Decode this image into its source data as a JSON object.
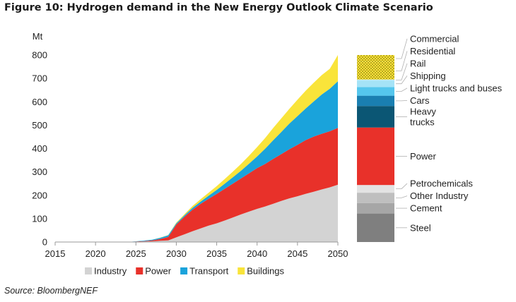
{
  "title": "Figure 10: Hydrogen demand in the New Energy Outlook Climate Scenario",
  "source": "Source: BloombergNEF",
  "chart_data": [
    {
      "type": "area",
      "stacked": true,
      "ylabel": "Mt",
      "ylim": [
        0,
        800
      ],
      "yticks": [
        0,
        100,
        200,
        300,
        400,
        500,
        600,
        700,
        800
      ],
      "xlim": [
        2015,
        2050
      ],
      "xticks": [
        2015,
        2020,
        2025,
        2030,
        2035,
        2040,
        2045,
        2050
      ],
      "grid": false,
      "legend_position": "bottom",
      "x": [
        2015,
        2020,
        2024,
        2025,
        2026,
        2027,
        2028,
        2029,
        2030,
        2031,
        2032,
        2033,
        2034,
        2035,
        2036,
        2037,
        2038,
        2039,
        2040,
        2041,
        2042,
        2043,
        2044,
        2045,
        2046,
        2047,
        2048,
        2049,
        2050
      ],
      "series": [
        {
          "name": "Industry",
          "color": "#d3d3d3",
          "values": [
            0,
            0,
            0,
            1,
            2,
            3,
            5,
            7,
            20,
            33,
            46,
            58,
            70,
            80,
            92,
            105,
            118,
            130,
            142,
            152,
            164,
            176,
            187,
            196,
            206,
            215,
            225,
            234,
            245
          ]
        },
        {
          "name": "Power",
          "color": "#e8312a",
          "values": [
            0,
            0,
            0,
            1,
            2,
            4,
            8,
            15,
            55,
            75,
            92,
            105,
            115,
            126,
            136,
            145,
            154,
            164,
            174,
            182,
            192,
            200,
            210,
            220,
            230,
            236,
            238,
            240,
            243
          ]
        },
        {
          "name": "Transport",
          "color": "#1aa3db",
          "values": [
            0,
            0,
            0,
            1,
            2,
            3,
            5,
            7,
            5,
            6,
            8,
            10,
            13,
            17,
            22,
            27,
            33,
            41,
            50,
            65,
            80,
            95,
            110,
            123,
            135,
            150,
            168,
            182,
            200
          ]
        },
        {
          "name": "Buildings",
          "color": "#f9e43a",
          "values": [
            0,
            0,
            0,
            0,
            0,
            0,
            1,
            1,
            3,
            5,
            8,
            10,
            13,
            16,
            20,
            24,
            29,
            34,
            40,
            46,
            52,
            58,
            63,
            70,
            76,
            80,
            83,
            85,
            112
          ]
        }
      ]
    },
    {
      "type": "bar",
      "stacked": true,
      "ylim": [
        0,
        800
      ],
      "segments": [
        {
          "label": "Steel",
          "value": 122,
          "color": "#7f7f7f"
        },
        {
          "label": "Cement",
          "value": 45,
          "color": "#a6a6a6"
        },
        {
          "label": "Other Industry",
          "value": 44,
          "color": "#bfbfbf"
        },
        {
          "label": "Petrochemicals",
          "value": 33,
          "color": "#e3e3e3"
        },
        {
          "label": "Power",
          "value": 246,
          "color": "#e8312a"
        },
        {
          "label": "Heavy\ntrucks",
          "value": 92,
          "color": "#0b5674"
        },
        {
          "label": "Cars",
          "value": 44,
          "color": "#1a7fb1"
        },
        {
          "label": "Light trucks and buses",
          "value": 37,
          "color": "#55c6ed"
        },
        {
          "label": "Shipping",
          "value": 28,
          "color": "#a5e3f7"
        },
        {
          "label": "Rail",
          "value": 4,
          "color": "#bdeaf9"
        },
        {
          "label": "Residential",
          "value": 75,
          "color": "#f9e43a",
          "pattern": "dotted"
        },
        {
          "label": "Commercial",
          "value": 30,
          "color": "#f9e43a",
          "pattern": "dotted"
        }
      ]
    }
  ]
}
